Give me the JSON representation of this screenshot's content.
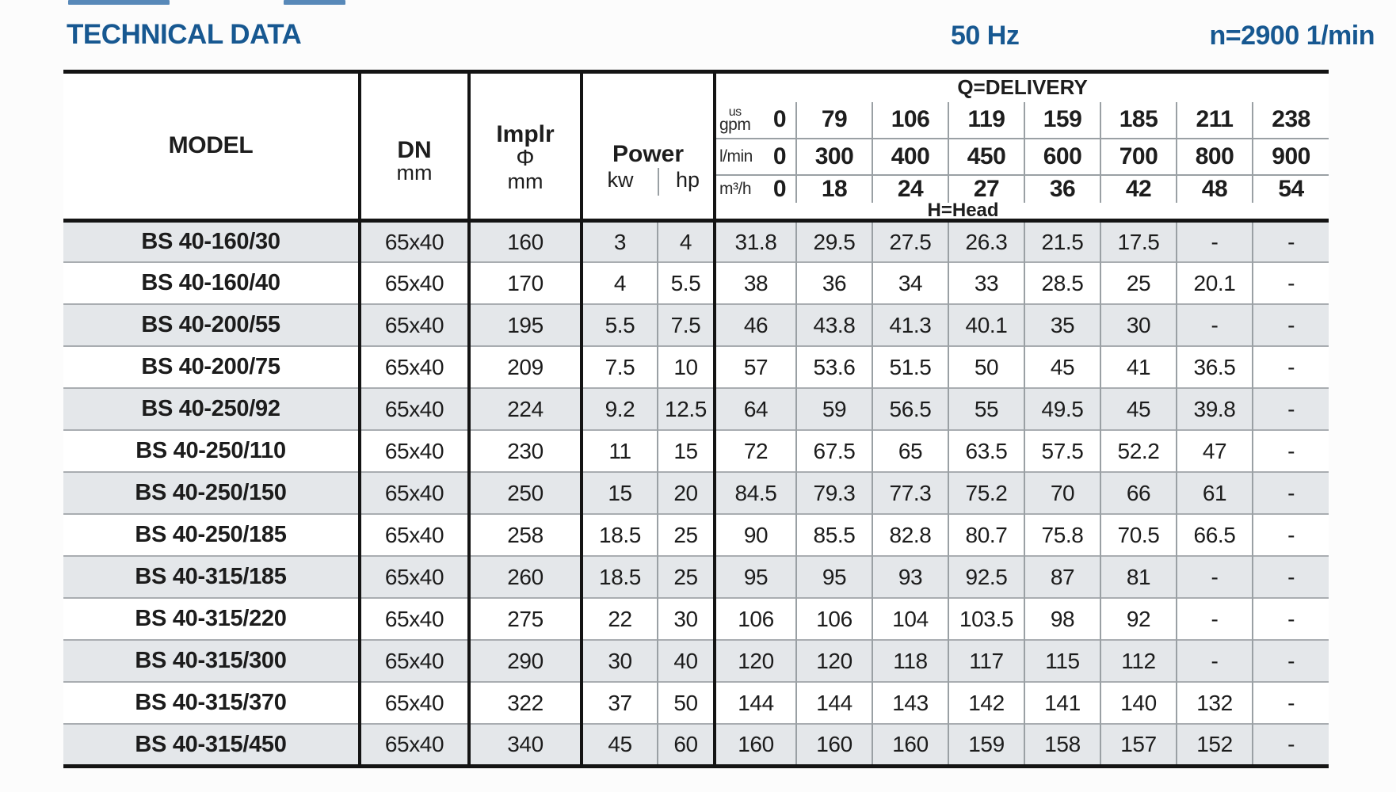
{
  "page": {
    "title": "TECHNICAL DATA",
    "frequency": "50 Hz",
    "speed": "n=2900 1/min"
  },
  "table": {
    "headers": {
      "model": "MODEL",
      "dn": "DN",
      "dn_unit": "mm",
      "impeller_line1": "Implr",
      "impeller_line2": "Φ",
      "impeller_unit": "mm",
      "power": "Power",
      "power_kw": "kw",
      "power_hp": "hp",
      "delivery": "Q=DELIVERY",
      "head": "H=Head",
      "unit_usgpm_top": "us",
      "unit_usgpm": "gpm",
      "unit_lmin": "l/min",
      "unit_m3h": "m³/h"
    },
    "delivery_columns": {
      "us_gpm": [
        "0",
        "79",
        "106",
        "119",
        "159",
        "185",
        "211",
        "238"
      ],
      "l_min": [
        "0",
        "300",
        "400",
        "450",
        "600",
        "700",
        "800",
        "900"
      ],
      "m3_h": [
        "0",
        "18",
        "24",
        "27",
        "36",
        "42",
        "48",
        "54"
      ]
    },
    "rows": [
      {
        "model": "BS 40-160/30",
        "dn": "65x40",
        "impeller": "160",
        "kw": "3",
        "hp": "4",
        "head": [
          "31.8",
          "29.5",
          "27.5",
          "26.3",
          "21.5",
          "17.5",
          "-",
          "-"
        ]
      },
      {
        "model": "BS 40-160/40",
        "dn": "65x40",
        "impeller": "170",
        "kw": "4",
        "hp": "5.5",
        "head": [
          "38",
          "36",
          "34",
          "33",
          "28.5",
          "25",
          "20.1",
          "-"
        ]
      },
      {
        "model": "BS 40-200/55",
        "dn": "65x40",
        "impeller": "195",
        "kw": "5.5",
        "hp": "7.5",
        "head": [
          "46",
          "43.8",
          "41.3",
          "40.1",
          "35",
          "30",
          "-",
          "-"
        ]
      },
      {
        "model": "BS 40-200/75",
        "dn": "65x40",
        "impeller": "209",
        "kw": "7.5",
        "hp": "10",
        "head": [
          "57",
          "53.6",
          "51.5",
          "50",
          "45",
          "41",
          "36.5",
          "-"
        ]
      },
      {
        "model": "BS 40-250/92",
        "dn": "65x40",
        "impeller": "224",
        "kw": "9.2",
        "hp": "12.5",
        "head": [
          "64",
          "59",
          "56.5",
          "55",
          "49.5",
          "45",
          "39.8",
          "-"
        ]
      },
      {
        "model": "BS 40-250/110",
        "dn": "65x40",
        "impeller": "230",
        "kw": "11",
        "hp": "15",
        "head": [
          "72",
          "67.5",
          "65",
          "63.5",
          "57.5",
          "52.2",
          "47",
          "-"
        ]
      },
      {
        "model": "BS 40-250/150",
        "dn": "65x40",
        "impeller": "250",
        "kw": "15",
        "hp": "20",
        "head": [
          "84.5",
          "79.3",
          "77.3",
          "75.2",
          "70",
          "66",
          "61",
          "-"
        ]
      },
      {
        "model": "BS 40-250/185",
        "dn": "65x40",
        "impeller": "258",
        "kw": "18.5",
        "hp": "25",
        "head": [
          "90",
          "85.5",
          "82.8",
          "80.7",
          "75.8",
          "70.5",
          "66.5",
          "-"
        ]
      },
      {
        "model": "BS 40-315/185",
        "dn": "65x40",
        "impeller": "260",
        "kw": "18.5",
        "hp": "25",
        "head": [
          "95",
          "95",
          "93",
          "92.5",
          "87",
          "81",
          "-",
          "-"
        ]
      },
      {
        "model": "BS 40-315/220",
        "dn": "65x40",
        "impeller": "275",
        "kw": "22",
        "hp": "30",
        "head": [
          "106",
          "106",
          "104",
          "103.5",
          "98",
          "92",
          "-",
          "-"
        ]
      },
      {
        "model": "BS 40-315/300",
        "dn": "65x40",
        "impeller": "290",
        "kw": "30",
        "hp": "40",
        "head": [
          "120",
          "120",
          "118",
          "117",
          "115",
          "112",
          "-",
          "-"
        ]
      },
      {
        "model": "BS 40-315/370",
        "dn": "65x40",
        "impeller": "322",
        "kw": "37",
        "hp": "50",
        "head": [
          "144",
          "144",
          "143",
          "142",
          "141",
          "140",
          "132",
          "-"
        ]
      },
      {
        "model": "BS 40-315/450",
        "dn": "65x40",
        "impeller": "340",
        "kw": "45",
        "hp": "60",
        "head": [
          "160",
          "160",
          "160",
          "159",
          "158",
          "157",
          "152",
          "-"
        ]
      }
    ]
  },
  "colors": {
    "accent_blue": "#175891",
    "row_shade": "#e4e7ea",
    "grid_thick": "#141414",
    "grid_thin": "#9aa0a4"
  }
}
